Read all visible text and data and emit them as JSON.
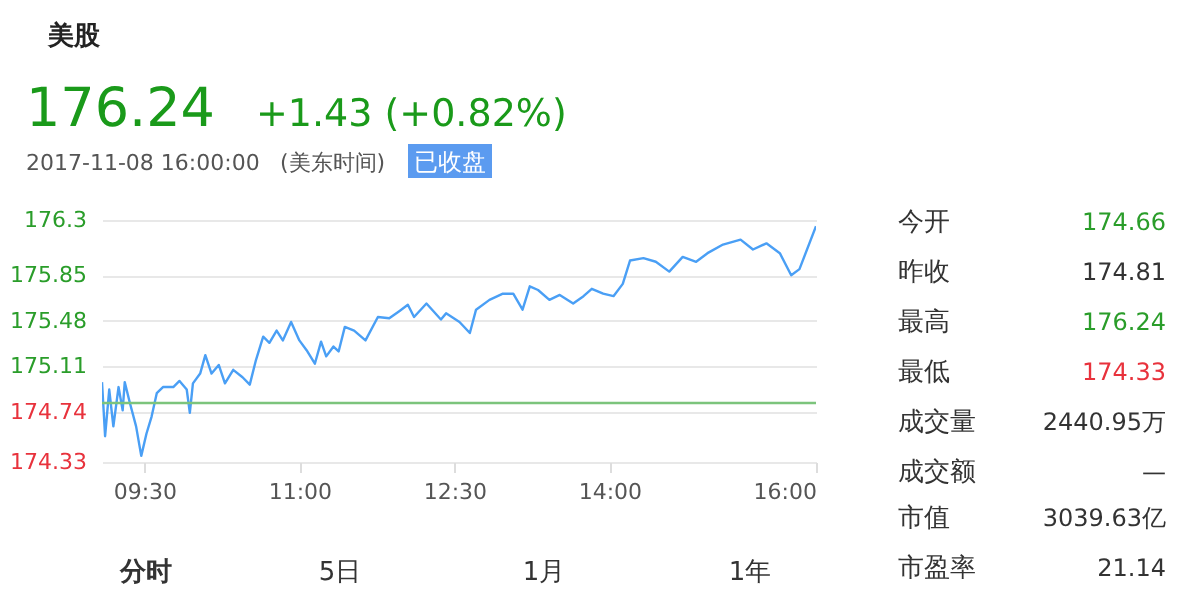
{
  "chart_data": {
    "type": "line",
    "color": "#4a9ff5",
    "x": [
      9.09,
      9.12,
      9.16,
      9.2,
      9.25,
      9.29,
      9.31,
      9.36,
      9.42,
      9.47,
      9.52,
      9.57,
      9.62,
      9.68,
      9.78,
      9.84,
      9.91,
      9.94,
      9.97,
      10.04,
      10.09,
      10.15,
      10.22,
      10.28,
      10.36,
      10.45,
      10.52,
      10.58,
      10.65,
      10.71,
      10.78,
      10.84,
      10.92,
      11.0,
      11.07,
      11.15,
      11.21,
      11.26,
      11.33,
      11.38,
      11.44,
      11.53,
      11.64,
      11.76,
      11.87,
      11.97,
      12.05,
      12.11,
      12.23,
      12.37,
      12.42,
      12.55,
      12.65,
      12.71,
      12.84,
      12.97,
      13.07,
      13.16,
      13.23,
      13.31,
      13.42,
      13.52,
      13.65,
      13.75,
      13.83,
      13.94,
      14.04,
      14.13,
      14.2,
      14.33,
      14.45,
      14.58,
      14.71,
      14.84,
      14.95,
      15.1,
      15.27,
      15.39,
      15.52,
      15.65,
      15.76,
      15.84,
      16.0
    ],
    "values": [
      174.98,
      174.54,
      174.92,
      174.62,
      174.94,
      174.75,
      174.98,
      174.81,
      174.62,
      174.38,
      174.56,
      174.7,
      174.89,
      174.94,
      174.94,
      174.99,
      174.92,
      174.73,
      174.97,
      175.05,
      175.2,
      175.05,
      175.12,
      174.97,
      175.08,
      175.02,
      174.96,
      175.16,
      175.35,
      175.3,
      175.4,
      175.32,
      175.47,
      175.32,
      175.24,
      175.13,
      175.31,
      175.19,
      175.27,
      175.23,
      175.43,
      175.4,
      175.32,
      175.51,
      175.5,
      175.56,
      175.61,
      175.51,
      175.62,
      175.49,
      175.54,
      175.47,
      175.38,
      175.57,
      175.65,
      175.7,
      175.7,
      175.57,
      175.76,
      175.73,
      175.65,
      175.69,
      175.62,
      175.68,
      175.74,
      175.7,
      175.68,
      175.78,
      175.97,
      175.99,
      175.96,
      175.88,
      176.0,
      175.96,
      176.03,
      176.1,
      176.14,
      176.06,
      176.11,
      176.03,
      175.85,
      175.9,
      176.25
    ],
    "xlim": [
      9.09,
      16
    ],
    "xticks": [
      {
        "value": 9.5,
        "label": "09:30"
      },
      {
        "value": 11,
        "label": "11:00"
      },
      {
        "value": 12.5,
        "label": "12:30"
      },
      {
        "value": 14,
        "label": "14:00"
      },
      {
        "value": 16,
        "label": "16:00"
      }
    ],
    "ylim": [
      174.33,
      176.3
    ],
    "yticks": [
      174.33,
      174.74,
      175.11,
      175.48,
      175.85,
      176.3
    ],
    "grid": "y",
    "ref_lines": [
      {
        "axis": "y",
        "value": 174.81,
        "color": "#7cc47c"
      }
    ],
    "annotations": [
      "美股",
      "176.24",
      "+1.43 (+0.82%)",
      "2017-11-08 16:00:00",
      "(美东时间)",
      "已收盘",
      "今开",
      "174.66",
      "昨收",
      "174.81",
      "最高",
      "176.24",
      "最低",
      "174.33",
      "成交量",
      "2440.95万",
      "成交额",
      "—",
      "市值",
      "3039.63亿",
      "市盈率",
      "21.14",
      "分时",
      "5日",
      "1月",
      "1年"
    ]
  }
}
